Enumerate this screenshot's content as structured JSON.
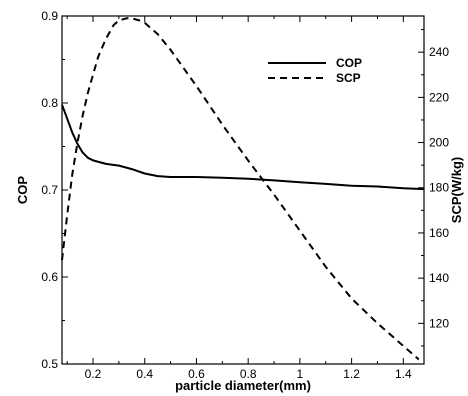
{
  "chart_data": {
    "type": "line",
    "xlabel": "particle diameter(mm)",
    "ylabel_left": "COP",
    "ylabel_right": "SCP(W/kg)",
    "xlim": [
      0.08,
      1.48
    ],
    "ylim_left": [
      0.5,
      0.9
    ],
    "ylim_right": [
      102,
      256
    ],
    "x_ticks": [
      0.2,
      0.4,
      0.6,
      0.8,
      1.0,
      1.2,
      1.4
    ],
    "x_tick_labels": [
      "0.2",
      "0.4",
      "0.6",
      "0.8",
      "1",
      "1.2",
      "1.4"
    ],
    "y_left_ticks": [
      0.5,
      0.6,
      0.7,
      0.8,
      0.9
    ],
    "y_left_tick_labels": [
      "0.5",
      "0.6",
      "0.7",
      "0.8",
      "0.9"
    ],
    "y_right_ticks": [
      120,
      140,
      160,
      180,
      200,
      220,
      240
    ],
    "y_right_tick_labels": [
      "120",
      "140",
      "160",
      "180",
      "200",
      "220",
      "240"
    ],
    "grid": false,
    "legend_position": "top-right",
    "series": [
      {
        "name": "COP",
        "axis": "left",
        "style": "solid",
        "color": "#000000",
        "x": [
          0.08,
          0.1,
          0.12,
          0.14,
          0.16,
          0.18,
          0.2,
          0.25,
          0.3,
          0.35,
          0.4,
          0.45,
          0.5,
          0.6,
          0.7,
          0.8,
          0.9,
          1.0,
          1.1,
          1.2,
          1.3,
          1.4,
          1.48
        ],
        "y": [
          0.798,
          0.782,
          0.766,
          0.753,
          0.743,
          0.737,
          0.734,
          0.73,
          0.728,
          0.724,
          0.719,
          0.716,
          0.715,
          0.715,
          0.714,
          0.713,
          0.711,
          0.709,
          0.707,
          0.705,
          0.704,
          0.702,
          0.701
        ]
      },
      {
        "name": "SCP",
        "axis": "right",
        "style": "dashed",
        "color": "#000000",
        "x": [
          0.08,
          0.1,
          0.12,
          0.14,
          0.16,
          0.18,
          0.2,
          0.22,
          0.25,
          0.28,
          0.3,
          0.33,
          0.35,
          0.38,
          0.4,
          0.45,
          0.5,
          0.55,
          0.6,
          0.7,
          0.8,
          0.9,
          1.0,
          1.1,
          1.2,
          1.3,
          1.4,
          1.46
        ],
        "y": [
          148,
          168,
          186,
          200,
          212,
          222,
          230,
          238,
          246,
          252,
          254,
          255,
          255,
          254,
          253,
          248,
          241,
          233,
          225,
          208,
          192,
          177,
          161,
          145,
          131,
          120,
          110,
          104
        ]
      }
    ]
  }
}
